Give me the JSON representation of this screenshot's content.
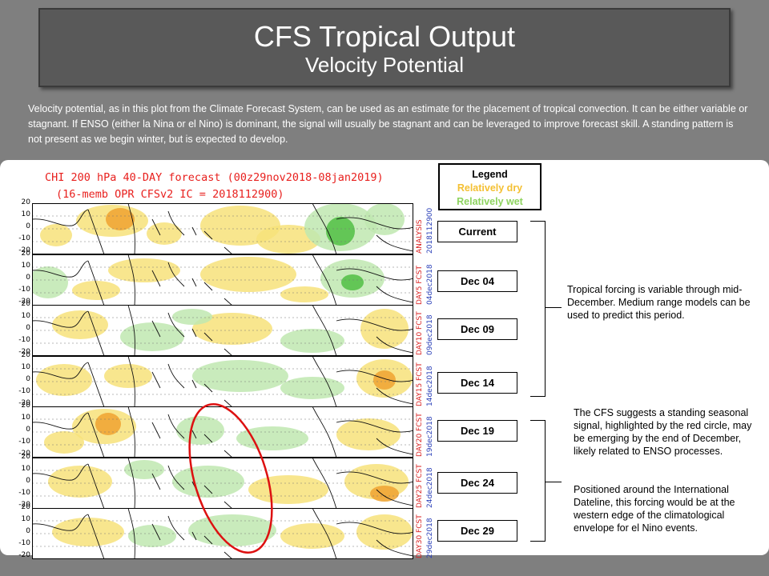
{
  "slide": {
    "title": "CFS Tropical Output",
    "subtitle": "Velocity Potential",
    "intro_text": "Velocity potential, as in this plot from the Climate Forecast System, can be used as an estimate for the placement of tropical convection. It can be either variable or stagnant. If ENSO (either la Nina or el Nino) is dominant,  the signal will usually be stagnant and can be leveraged to improve  forecast skill.  A standing pattern is not present as we begin winter, but is expected to develop."
  },
  "chart": {
    "title_line1": "CHI 200 hPa 40-DAY forecast (00z29nov2018-08jan2019)",
    "title_line2": "(16-memb OPR CFSv2 IC = 2018112900)",
    "y_ticks": [
      "20",
      "10",
      "0",
      "-10",
      "-20"
    ],
    "strips": [
      {
        "label_a": "ANALYSIS",
        "label_b": "2018112900"
      },
      {
        "label_a": "DAY5 FCST",
        "label_b": "04dec2018"
      },
      {
        "label_a": "DAY10 FCST",
        "label_b": "09dec2018"
      },
      {
        "label_a": "DAY15 FCST",
        "label_b": "14dec2018"
      },
      {
        "label_a": "DAY20 FCST",
        "label_b": "19dec2018"
      },
      {
        "label_a": "DAY25 FCST",
        "label_b": "24dec2018"
      },
      {
        "label_a": "DAY30 FCST",
        "label_b": "29dec2018"
      }
    ],
    "colors": {
      "dry": "#f7e27a",
      "dry_strong": "#f0a636",
      "wet": "#bfe8b0",
      "wet_strong": "#58c24a",
      "highlight": "#dd1111"
    }
  },
  "legend": {
    "title": "Legend",
    "dry_label": "Relatively dry",
    "wet_label": "Relatively wet"
  },
  "dates": [
    "Current",
    "Dec 04",
    "Dec 09",
    "Dec 14",
    "Dec 19",
    "Dec 24",
    "Dec 29"
  ],
  "notes": {
    "upper": "Tropical forcing is variable through mid-December.  Medium range models  can be used to predict this period.",
    "lower_p1": "The CFS suggests a standing seasonal signal, highlighted by the red circle, may be emerging by the end of December,  likely related to ENSO processes.",
    "lower_p2": "Positioned around the International Dateline, this forcing would be at the western edge of the climatological envelope for el Nino events."
  }
}
